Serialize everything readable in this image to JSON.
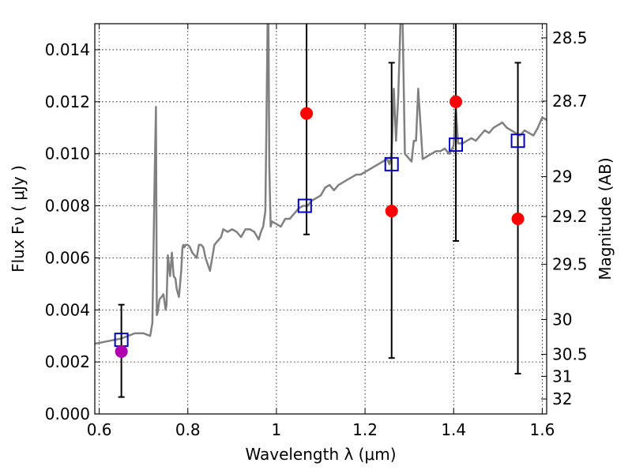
{
  "chart_data": {
    "type": "scatter",
    "xlabel": "Wavelength  λ (μm)",
    "ylabel": "Flux  Fν  ( μJy )",
    "right_ylabel": "Magnitude (AB)",
    "xlim": [
      0.59,
      1.61
    ],
    "ylim": [
      0.0,
      0.015
    ],
    "x_ticks": [
      {
        "value": 0.6,
        "label": "0.6"
      },
      {
        "value": 0.8,
        "label": "0.8"
      },
      {
        "value": 1.0,
        "label": "1"
      },
      {
        "value": 1.2,
        "label": "1.2"
      },
      {
        "value": 1.4,
        "label": "1.4"
      },
      {
        "value": 1.6,
        "label": "1.6"
      }
    ],
    "y_ticks": [
      {
        "value": 0.0,
        "label": "0.000"
      },
      {
        "value": 0.002,
        "label": "0.002"
      },
      {
        "value": 0.004,
        "label": "0.004"
      },
      {
        "value": 0.006,
        "label": "0.006"
      },
      {
        "value": 0.008,
        "label": "0.008"
      },
      {
        "value": 0.01,
        "label": "0.010"
      },
      {
        "value": 0.012,
        "label": "0.012"
      },
      {
        "value": 0.014,
        "label": "0.014"
      }
    ],
    "right_ticks": [
      {
        "value": 28.5,
        "label": "28.5"
      },
      {
        "value": 28.7,
        "label": "28.7"
      },
      {
        "value": 29,
        "label": "29"
      },
      {
        "value": 29.2,
        "label": "29.2"
      },
      {
        "value": 29.5,
        "label": "29.5"
      },
      {
        "value": 30,
        "label": "30"
      },
      {
        "value": 30.5,
        "label": "30.5"
      },
      {
        "value": 31,
        "label": "31"
      },
      {
        "value": 32,
        "label": "32"
      }
    ],
    "grid": true,
    "series": [
      {
        "kind": "spectrum-line",
        "color": "#808080",
        "x": [
          0.59,
          0.62,
          0.65,
          0.68,
          0.7,
          0.715,
          0.72,
          0.725,
          0.728,
          0.73,
          0.732,
          0.736,
          0.745,
          0.75,
          0.752,
          0.755,
          0.76,
          0.764,
          0.768,
          0.772,
          0.775,
          0.78,
          0.785,
          0.788,
          0.79,
          0.792,
          0.795,
          0.8,
          0.805,
          0.81,
          0.815,
          0.82,
          0.825,
          0.83,
          0.835,
          0.84,
          0.85,
          0.86,
          0.865,
          0.87,
          0.875,
          0.88,
          0.89,
          0.9,
          0.91,
          0.92,
          0.93,
          0.94,
          0.95,
          0.96,
          0.965,
          0.97,
          0.975,
          0.978,
          0.98,
          0.982,
          0.984,
          0.987,
          0.99,
          1.0,
          1.01,
          1.02,
          1.03,
          1.04,
          1.05,
          1.06,
          1.07,
          1.08,
          1.09,
          1.1,
          1.11,
          1.12,
          1.13,
          1.14,
          1.15,
          1.16,
          1.17,
          1.18,
          1.19,
          1.2,
          1.21,
          1.22,
          1.23,
          1.24,
          1.25,
          1.255,
          1.26,
          1.265,
          1.27,
          1.275,
          1.28,
          1.285,
          1.29,
          1.295,
          1.3,
          1.305,
          1.31,
          1.315,
          1.32,
          1.33,
          1.34,
          1.35,
          1.36,
          1.37,
          1.38,
          1.39,
          1.4,
          1.405,
          1.41,
          1.42,
          1.43,
          1.44,
          1.45,
          1.46,
          1.47,
          1.48,
          1.49,
          1.5,
          1.51,
          1.52,
          1.53,
          1.54,
          1.55,
          1.56,
          1.57,
          1.58,
          1.59,
          1.6,
          1.61
        ],
        "y": [
          0.0027,
          0.0028,
          0.0029,
          0.0031,
          0.0031,
          0.003,
          0.0035,
          0.009,
          0.0118,
          0.0038,
          0.0039,
          0.0044,
          0.0046,
          0.004,
          0.0042,
          0.0061,
          0.0053,
          0.0062,
          0.0053,
          0.0052,
          0.0048,
          0.0045,
          0.0055,
          0.0064,
          0.0065,
          0.0064,
          0.0065,
          0.0065,
          0.0064,
          0.0062,
          0.0061,
          0.006,
          0.0065,
          0.0065,
          0.0064,
          0.006,
          0.0055,
          0.0065,
          0.0066,
          0.0067,
          0.0068,
          0.0071,
          0.007,
          0.0071,
          0.007,
          0.0068,
          0.0071,
          0.0071,
          0.007,
          0.0067,
          0.007,
          0.0072,
          0.0078,
          0.012,
          0.015,
          0.015,
          0.0095,
          0.0072,
          0.0074,
          0.0073,
          0.0072,
          0.0075,
          0.0075,
          0.0077,
          0.0079,
          0.008,
          0.008,
          0.0082,
          0.0083,
          0.0084,
          0.0087,
          0.0088,
          0.0086,
          0.0088,
          0.0089,
          0.009,
          0.0091,
          0.0092,
          0.0092,
          0.0093,
          0.0094,
          0.0095,
          0.0096,
          0.0097,
          0.0098,
          0.0096,
          0.01,
          0.0125,
          0.0105,
          0.0122,
          0.015,
          0.015,
          0.01,
          0.0099,
          0.0098,
          0.0097,
          0.0105,
          0.0105,
          0.0125,
          0.0098,
          0.0099,
          0.01,
          0.0101,
          0.0101,
          0.0102,
          0.01,
          0.0103,
          0.0118,
          0.0104,
          0.0104,
          0.0105,
          0.0106,
          0.0105,
          0.0107,
          0.0109,
          0.0108,
          0.011,
          0.0111,
          0.0112,
          0.011,
          0.0109,
          0.0108,
          0.0107,
          0.0109,
          0.0108,
          0.0107,
          0.011,
          0.0114,
          0.0113
        ]
      },
      {
        "kind": "model-photometry",
        "marker": "open-square",
        "color": "#0000cc",
        "x": [
          0.65,
          1.064,
          1.26,
          1.405,
          1.545
        ],
        "y": [
          0.00285,
          0.008,
          0.0096,
          0.01035,
          0.0105
        ]
      },
      {
        "kind": "observed-flux",
        "marker": "filled-circle",
        "color": "#ff0000",
        "x": [
          0.65,
          1.068,
          1.26,
          1.405,
          1.545
        ],
        "y": [
          0.0024,
          0.01155,
          0.0078,
          0.012,
          0.0075
        ],
        "point_colors": [
          "#b000b0",
          "#ff0000",
          "#ff0000",
          "#ff0000",
          "#ff0000"
        ]
      },
      {
        "kind": "error-bars",
        "color": "#000000",
        "x": [
          0.65,
          1.068,
          1.26,
          1.405,
          1.545
        ],
        "y_low": [
          0.00065,
          0.0069,
          0.00215,
          0.00665,
          0.00155
        ],
        "y_high": [
          0.0042,
          0.015,
          0.0135,
          0.015,
          0.0135
        ]
      }
    ]
  }
}
